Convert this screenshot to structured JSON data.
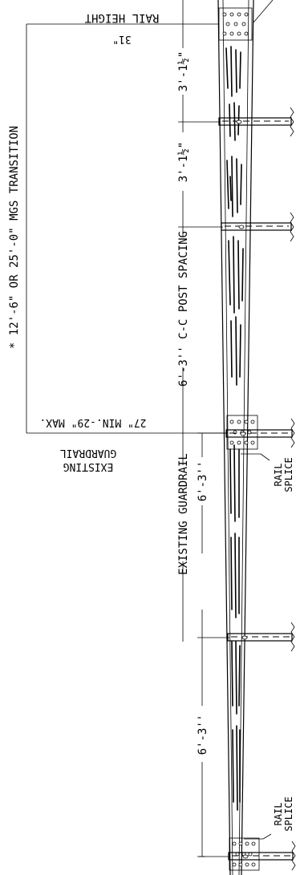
{
  "labels": {
    "rail_height": "RAIL HEIGHT",
    "rail_height_value": "31\"",
    "transition_note": "* 12'-6\" OR 25'-0\" MGS TRANSITION",
    "existing_guardrail_height_value": "27\" MIN.-29\" MAX.",
    "existing_guardrail_line1": "EXISTING",
    "existing_guardrail_line2": "GUARDRAIL",
    "dim_upper_1": "3'-1½\"",
    "dim_upper_2": "3'-1½\"",
    "post_spacing_label": "6'-3'' C-C POST SPACING",
    "existing_guardrail_dim_label": "EXISTING GUARDRAIL",
    "dim_lower_1": "6'-3''",
    "dim_lower_2": "6'-3''",
    "rail_splice_upper_1": "RAIL",
    "rail_splice_upper_2": "SPLICE",
    "rail_splice_lower_1": "RAIL",
    "rail_splice_lower_2": "SPLICE"
  }
}
